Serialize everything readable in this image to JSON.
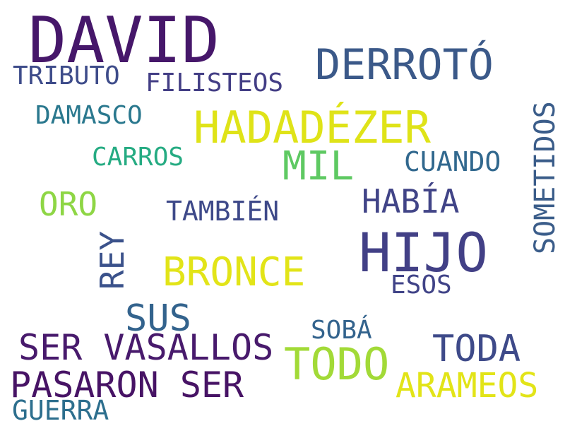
{
  "words": [
    {
      "text": "DAVID",
      "color": "#46176a"
    },
    {
      "text": "DERROTÓ",
      "color": "#3b5989"
    },
    {
      "text": "TRIBUTO",
      "color": "#3e4c8a"
    },
    {
      "text": "FILISTEOS",
      "color": "#433e85"
    },
    {
      "text": "DAMASCO",
      "color": "#2a788e"
    },
    {
      "text": "HADADÉZER",
      "color": "#dfe318"
    },
    {
      "text": "CARROS",
      "color": "#25ab82"
    },
    {
      "text": "MIL",
      "color": "#5ec962"
    },
    {
      "text": "CUANDO",
      "color": "#31688e"
    },
    {
      "text": "SOMETIDOS",
      "color": "#3b5d8a"
    },
    {
      "text": "ORO",
      "color": "#8ed645"
    },
    {
      "text": "TAMBIÉN",
      "color": "#3e4989"
    },
    {
      "text": "HABÍA",
      "color": "#414487"
    },
    {
      "text": "REY",
      "color": "#3b528b"
    },
    {
      "text": "HIJO",
      "color": "#424086"
    },
    {
      "text": "BRONCE",
      "color": "#e2e418"
    },
    {
      "text": "ESOS",
      "color": "#404387"
    },
    {
      "text": "SUS",
      "color": "#33638d"
    },
    {
      "text": "SOBÁ",
      "color": "#33638d"
    },
    {
      "text": "SER VASALLOS",
      "color": "#481a6c"
    },
    {
      "text": "TODA",
      "color": "#3e4a89"
    },
    {
      "text": "TODO",
      "color": "#a2da37"
    },
    {
      "text": "PASARON SER",
      "color": "#471365"
    },
    {
      "text": "ARAMEOS",
      "color": "#e2e418"
    },
    {
      "text": "GUERRA",
      "color": "#2d6f8e"
    }
  ]
}
